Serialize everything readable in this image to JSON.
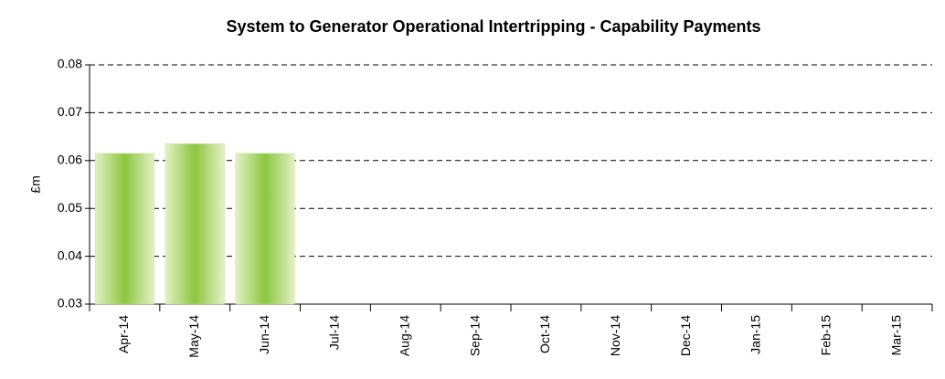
{
  "chart_data": {
    "type": "bar",
    "title": "System to Generator Operational Intertripping - Capability Payments",
    "y_label": "£m",
    "categories": [
      "Apr-14",
      "May-14",
      "Jun-14",
      "Jul-14",
      "Aug-14",
      "Sep-14",
      "Oct-14",
      "Nov-14",
      "Dec-14",
      "Jan-15",
      "Feb-15",
      "Mar-15"
    ],
    "values": [
      0.0615,
      0.0635,
      0.0615,
      null,
      null,
      null,
      null,
      null,
      null,
      null,
      null,
      null
    ],
    "color": "#8cc63f",
    "ylim": [
      0.03,
      0.08
    ],
    "yticks": [
      0.03,
      0.04,
      0.05,
      0.06,
      0.07,
      0.08
    ],
    "grid": true
  }
}
